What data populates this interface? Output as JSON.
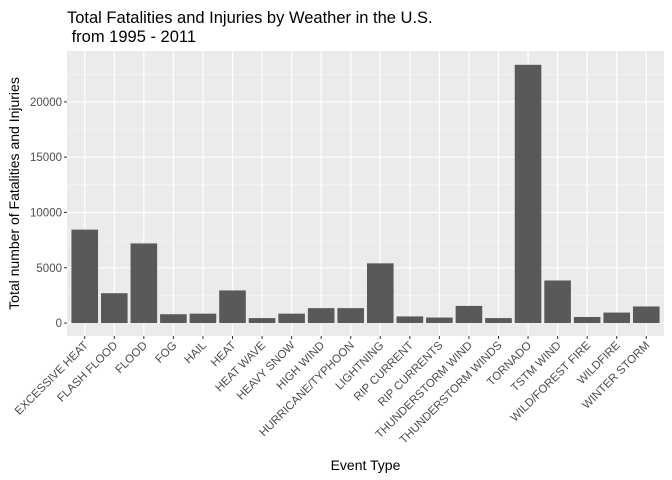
{
  "chart_data": {
    "type": "bar",
    "title_lines": [
      "Total Fatalities and Injuries by Weather in the U.S.",
      " from 1995 - 2011"
    ],
    "xlabel": "Event Type",
    "ylabel": "Total number of Fatalities and Injuries",
    "ylim": [
      -1170,
      24600
    ],
    "yticks": [
      0,
      5000,
      10000,
      15000,
      20000
    ],
    "ytick_labels": [
      "0",
      "5000",
      "10000",
      "15000",
      "20000"
    ],
    "grid": true,
    "legend": "none",
    "categories": [
      "EXCESSIVE HEAT",
      "FLASH FLOOD",
      "FLOOD",
      "FOG",
      "HAIL",
      "HEAT",
      "HEAT WAVE",
      "HEAVY SNOW",
      "HIGH WIND",
      "HURRICANE/TYPHOON",
      "LIGHTNING",
      "RIP CURRENT",
      "RIP CURRENTS",
      "THUNDERSTORM WIND",
      "THUNDERSTORM WINDS",
      "TORNADO",
      "TSTM WIND",
      "WILD/FOREST FIRE",
      "WILDFIRE",
      "WINTER STORM"
    ],
    "values": [
      8450,
      2700,
      7200,
      800,
      850,
      2950,
      450,
      850,
      1350,
      1350,
      5400,
      600,
      500,
      1550,
      450,
      23350,
      3850,
      550,
      950,
      1500
    ]
  },
  "colors": {
    "panel_bg": "#ebebeb",
    "grid_major": "#ffffff",
    "grid_minor": "#f5f5f5",
    "bar_fill": "#595959",
    "tick_text": "#4d4d4d",
    "tick_mark": "#333333"
  }
}
